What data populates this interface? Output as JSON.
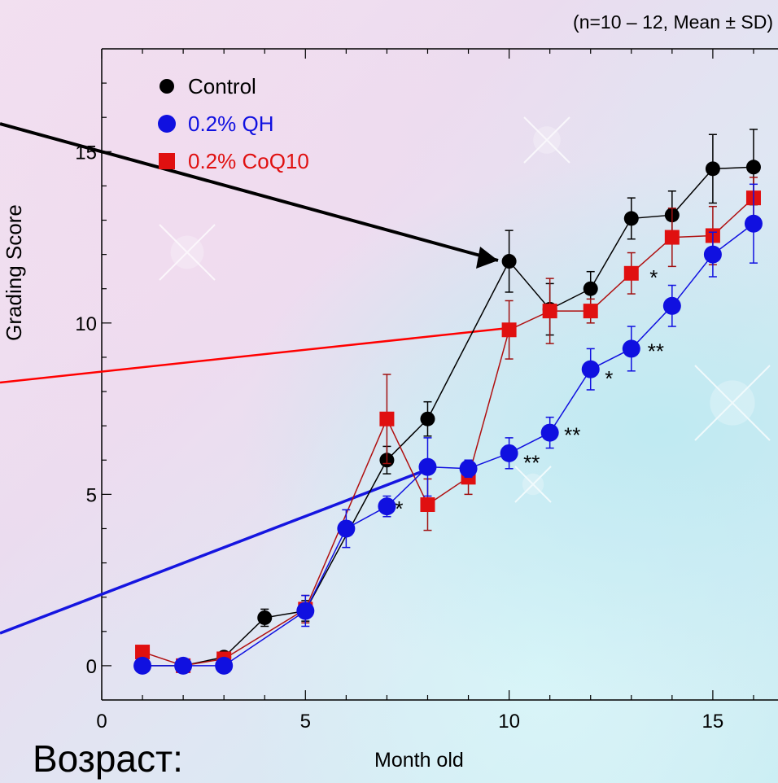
{
  "header_note": "(n=10 – 12, Mean ± SD)",
  "bottom_left_text": "Возраст:",
  "chart_data": {
    "type": "line",
    "xlabel": "Month old",
    "ylabel": "Grading Score",
    "xlim": [
      0,
      16.6
    ],
    "ylim": [
      -1,
      18
    ],
    "xticks": [
      0,
      5,
      10,
      15
    ],
    "yticks": [
      0,
      5,
      10,
      15
    ],
    "legend_position": "top-left",
    "series": [
      {
        "name": "Control",
        "color": "#000000",
        "marker": "circle",
        "x": [
          1,
          2,
          3,
          4,
          5,
          7,
          8,
          10,
          11,
          12,
          13,
          14,
          15,
          16
        ],
        "y": [
          0,
          0,
          0.25,
          1.4,
          1.6,
          6.0,
          7.2,
          11.8,
          10.4,
          11.0,
          13.05,
          13.15,
          14.5,
          14.55
        ],
        "err": [
          0,
          0,
          0.1,
          0.25,
          0.3,
          0.4,
          0.5,
          0.9,
          0.75,
          0.5,
          0.6,
          0.7,
          1.0,
          1.1
        ]
      },
      {
        "name": "0.2% QH",
        "color": "#1010e0",
        "marker": "circle",
        "x": [
          1,
          2,
          3,
          5,
          6,
          7,
          8,
          9,
          10,
          11,
          12,
          13,
          14,
          15,
          16
        ],
        "y": [
          0,
          0,
          0,
          1.6,
          4.0,
          4.65,
          5.8,
          5.75,
          6.2,
          6.8,
          8.65,
          9.25,
          10.5,
          12.0,
          12.9
        ],
        "err": [
          0,
          0,
          0,
          0.45,
          0.55,
          0.3,
          0.85,
          0.25,
          0.45,
          0.45,
          0.6,
          0.65,
          0.6,
          0.65,
          1.15
        ]
      },
      {
        "name": "0.2% CoQ10",
        "color": "#e01010",
        "marker": "square",
        "x": [
          1,
          2,
          3,
          5,
          7,
          8,
          9,
          10,
          11,
          12,
          13,
          14,
          15,
          16
        ],
        "y": [
          0.4,
          0,
          0.2,
          1.65,
          7.2,
          4.7,
          5.5,
          9.8,
          10.35,
          10.35,
          11.45,
          12.5,
          12.55,
          13.65
        ],
        "err": [
          0,
          0,
          0,
          0.4,
          1.3,
          0.75,
          0.5,
          0.85,
          0.95,
          0.35,
          0.6,
          0.85,
          0.85,
          0.6
        ]
      }
    ],
    "annotations": [
      {
        "text": "*",
        "x": 7.2,
        "y": 4.6
      },
      {
        "text": "**",
        "x": 10.35,
        "y": 5.95
      },
      {
        "text": "**",
        "x": 11.35,
        "y": 6.75
      },
      {
        "text": "*",
        "x": 12.35,
        "y": 8.4
      },
      {
        "text": "**",
        "x": 13.4,
        "y": 9.2
      },
      {
        "text": "*",
        "x": 13.45,
        "y": 11.35
      }
    ]
  }
}
